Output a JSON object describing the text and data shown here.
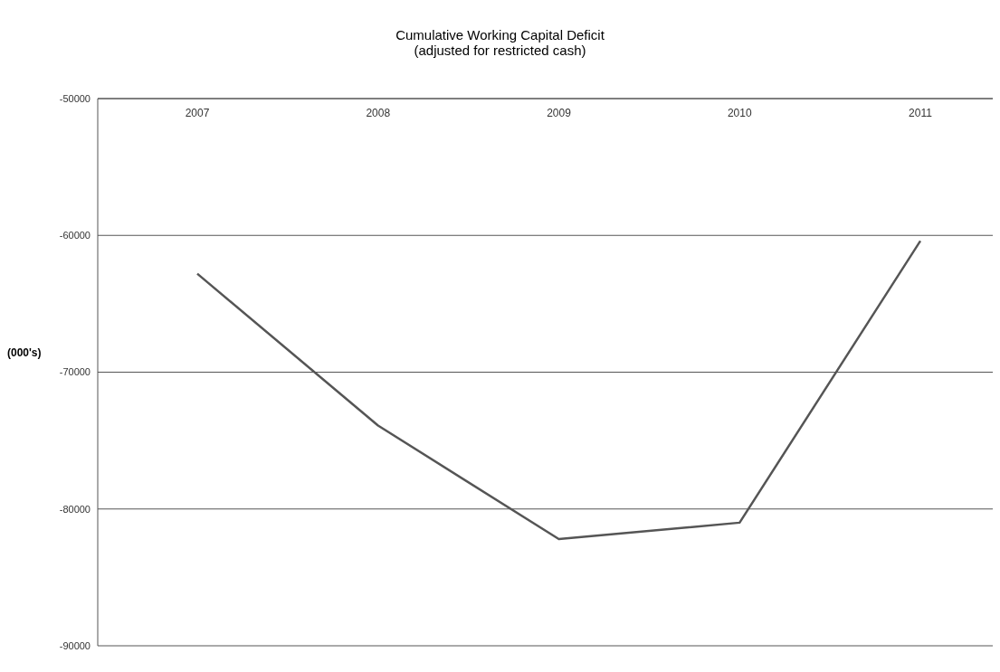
{
  "chart_data": {
    "type": "line",
    "title": "Cumulative Working Capital Deficit",
    "subtitle": "(adjusted for restricted cash)",
    "ylabel": "(000's)",
    "categories": [
      "2007",
      "2008",
      "2009",
      "2010",
      "2011"
    ],
    "series": [
      {
        "color": "#555555",
        "values": [
          -62800,
          -73900,
          -82200,
          -81000,
          -60400
        ]
      }
    ],
    "ylim": [
      -90000,
      -50000
    ],
    "yticks": [
      -90000,
      -80000,
      -70000,
      -60000,
      -50000
    ],
    "grid": "y",
    "marker": "none",
    "line_style": "solid"
  }
}
